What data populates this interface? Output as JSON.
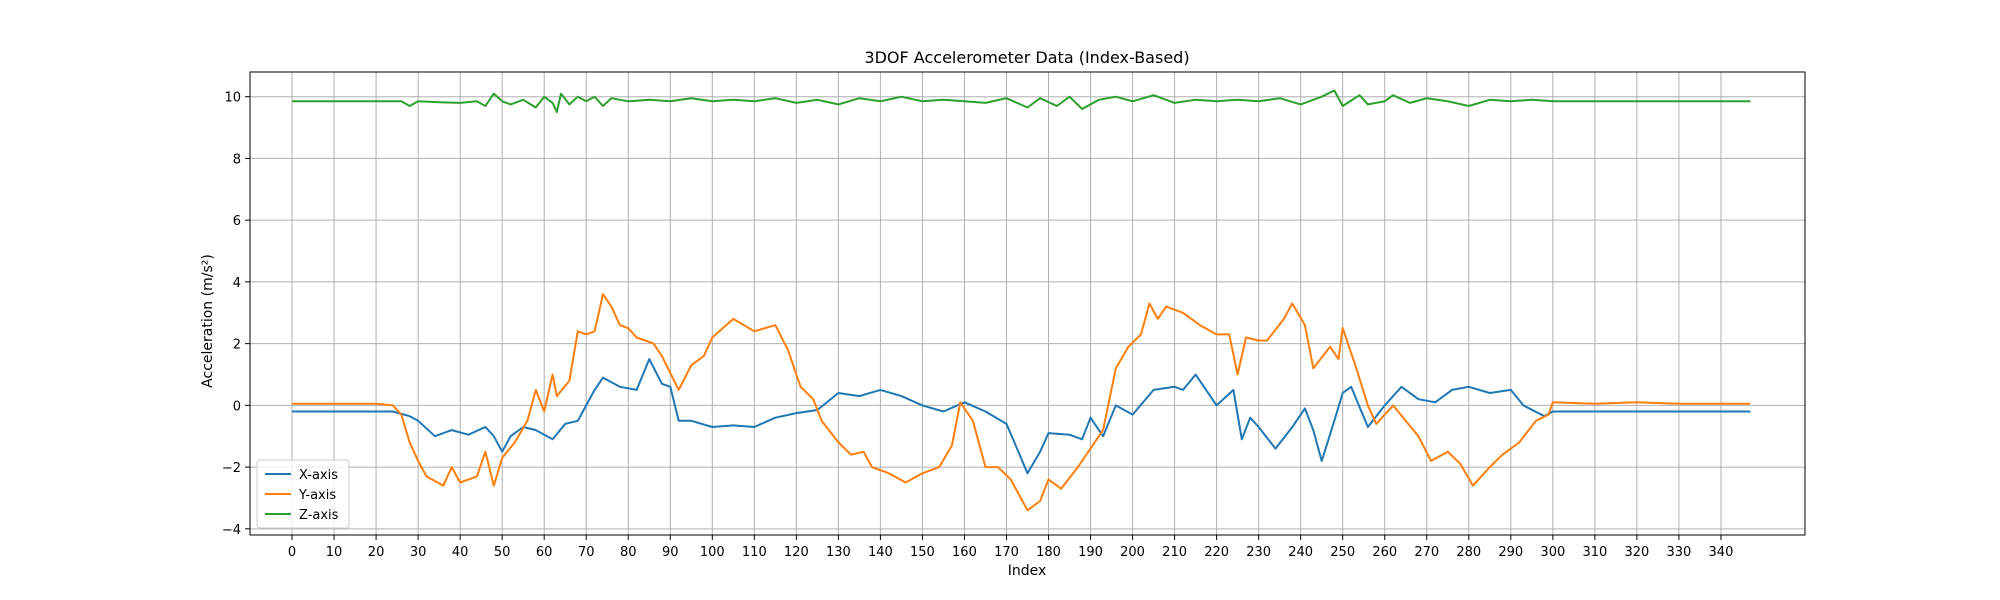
{
  "chart_data": {
    "type": "line",
    "title": "3DOF Accelerometer Data (Index-Based)",
    "xlabel": "Index",
    "ylabel": "Acceleration (m/s²)",
    "xlim": [
      -10,
      360
    ],
    "ylim": [
      -4.2,
      10.8
    ],
    "xticks": [
      0,
      10,
      20,
      30,
      40,
      50,
      60,
      70,
      80,
      90,
      100,
      110,
      120,
      130,
      140,
      150,
      160,
      170,
      180,
      190,
      200,
      210,
      220,
      230,
      240,
      250,
      260,
      270,
      280,
      290,
      300,
      310,
      320,
      330,
      340
    ],
    "yticks": [
      -4,
      -2,
      0,
      2,
      4,
      6,
      8,
      10
    ],
    "grid": true,
    "legend_position": "lower-left",
    "series": [
      {
        "name": "X-axis",
        "color": "#1f77b4",
        "points": [
          [
            0,
            -0.2
          ],
          [
            10,
            -0.2
          ],
          [
            20,
            -0.2
          ],
          [
            24,
            -0.2
          ],
          [
            28,
            -0.35
          ],
          [
            30,
            -0.5
          ],
          [
            34,
            -1.0
          ],
          [
            38,
            -0.8
          ],
          [
            42,
            -0.95
          ],
          [
            46,
            -0.7
          ],
          [
            48,
            -1.0
          ],
          [
            50,
            -1.5
          ],
          [
            52,
            -1.0
          ],
          [
            55,
            -0.7
          ],
          [
            58,
            -0.8
          ],
          [
            62,
            -1.1
          ],
          [
            65,
            -0.6
          ],
          [
            68,
            -0.5
          ],
          [
            70,
            0.0
          ],
          [
            72,
            0.5
          ],
          [
            74,
            0.9
          ],
          [
            78,
            0.6
          ],
          [
            82,
            0.5
          ],
          [
            85,
            1.5
          ],
          [
            88,
            0.7
          ],
          [
            90,
            0.6
          ],
          [
            92,
            -0.5
          ],
          [
            95,
            -0.5
          ],
          [
            100,
            -0.7
          ],
          [
            105,
            -0.65
          ],
          [
            110,
            -0.7
          ],
          [
            115,
            -0.4
          ],
          [
            120,
            -0.25
          ],
          [
            125,
            -0.15
          ],
          [
            130,
            0.4
          ],
          [
            135,
            0.3
          ],
          [
            140,
            0.5
          ],
          [
            145,
            0.3
          ],
          [
            150,
            0.0
          ],
          [
            155,
            -0.2
          ],
          [
            160,
            0.1
          ],
          [
            165,
            -0.2
          ],
          [
            170,
            -0.6
          ],
          [
            175,
            -2.2
          ],
          [
            178,
            -1.5
          ],
          [
            180,
            -0.9
          ],
          [
            185,
            -0.95
          ],
          [
            188,
            -1.1
          ],
          [
            190,
            -0.4
          ],
          [
            193,
            -1.0
          ],
          [
            196,
            0.0
          ],
          [
            200,
            -0.3
          ],
          [
            205,
            0.5
          ],
          [
            210,
            0.6
          ],
          [
            212,
            0.5
          ],
          [
            215,
            1.0
          ],
          [
            220,
            0.0
          ],
          [
            224,
            0.5
          ],
          [
            226,
            -1.1
          ],
          [
            228,
            -0.4
          ],
          [
            230,
            -0.7
          ],
          [
            234,
            -1.4
          ],
          [
            238,
            -0.7
          ],
          [
            241,
            -0.1
          ],
          [
            243,
            -0.8
          ],
          [
            245,
            -1.8
          ],
          [
            248,
            -0.5
          ],
          [
            250,
            0.4
          ],
          [
            252,
            0.6
          ],
          [
            256,
            -0.7
          ],
          [
            260,
            0.0
          ],
          [
            264,
            0.6
          ],
          [
            268,
            0.2
          ],
          [
            272,
            0.1
          ],
          [
            276,
            0.5
          ],
          [
            280,
            0.6
          ],
          [
            285,
            0.4
          ],
          [
            290,
            0.5
          ],
          [
            293,
            0.0
          ],
          [
            298,
            -0.35
          ],
          [
            300,
            -0.2
          ],
          [
            310,
            -0.2
          ],
          [
            320,
            -0.2
          ],
          [
            330,
            -0.2
          ],
          [
            340,
            -0.2
          ],
          [
            347,
            -0.2
          ]
        ]
      },
      {
        "name": "Y-axis",
        "color": "#ff7f0e",
        "points": [
          [
            0,
            0.05
          ],
          [
            10,
            0.05
          ],
          [
            20,
            0.05
          ],
          [
            24,
            0.0
          ],
          [
            26,
            -0.3
          ],
          [
            28,
            -1.2
          ],
          [
            30,
            -1.8
          ],
          [
            32,
            -2.3
          ],
          [
            36,
            -2.6
          ],
          [
            38,
            -2.0
          ],
          [
            40,
            -2.5
          ],
          [
            44,
            -2.3
          ],
          [
            46,
            -1.5
          ],
          [
            48,
            -2.6
          ],
          [
            50,
            -1.7
          ],
          [
            53,
            -1.2
          ],
          [
            56,
            -0.5
          ],
          [
            58,
            0.5
          ],
          [
            60,
            -0.2
          ],
          [
            62,
            1.0
          ],
          [
            63,
            0.3
          ],
          [
            66,
            0.8
          ],
          [
            68,
            2.4
          ],
          [
            70,
            2.3
          ],
          [
            72,
            2.4
          ],
          [
            74,
            3.6
          ],
          [
            76,
            3.2
          ],
          [
            78,
            2.6
          ],
          [
            80,
            2.5
          ],
          [
            82,
            2.2
          ],
          [
            84,
            2.1
          ],
          [
            86,
            2.0
          ],
          [
            88,
            1.6
          ],
          [
            92,
            0.5
          ],
          [
            95,
            1.3
          ],
          [
            98,
            1.6
          ],
          [
            100,
            2.2
          ],
          [
            105,
            2.8
          ],
          [
            110,
            2.4
          ],
          [
            115,
            2.6
          ],
          [
            118,
            1.8
          ],
          [
            121,
            0.6
          ],
          [
            124,
            0.2
          ],
          [
            126,
            -0.5
          ],
          [
            130,
            -1.2
          ],
          [
            133,
            -1.6
          ],
          [
            136,
            -1.5
          ],
          [
            138,
            -2.0
          ],
          [
            142,
            -2.2
          ],
          [
            146,
            -2.5
          ],
          [
            150,
            -2.2
          ],
          [
            154,
            -2.0
          ],
          [
            157,
            -1.3
          ],
          [
            159,
            0.1
          ],
          [
            162,
            -0.5
          ],
          [
            165,
            -2.0
          ],
          [
            168,
            -2.0
          ],
          [
            171,
            -2.4
          ],
          [
            175,
            -3.4
          ],
          [
            178,
            -3.1
          ],
          [
            180,
            -2.4
          ],
          [
            183,
            -2.7
          ],
          [
            187,
            -2.0
          ],
          [
            190,
            -1.4
          ],
          [
            193,
            -0.8
          ],
          [
            196,
            1.2
          ],
          [
            199,
            1.9
          ],
          [
            202,
            2.3
          ],
          [
            204,
            3.3
          ],
          [
            206,
            2.8
          ],
          [
            208,
            3.2
          ],
          [
            212,
            3.0
          ],
          [
            216,
            2.6
          ],
          [
            220,
            2.3
          ],
          [
            223,
            2.3
          ],
          [
            225,
            1.0
          ],
          [
            227,
            2.2
          ],
          [
            230,
            2.1
          ],
          [
            232,
            2.1
          ],
          [
            236,
            2.8
          ],
          [
            238,
            3.3
          ],
          [
            241,
            2.6
          ],
          [
            243,
            1.2
          ],
          [
            247,
            1.9
          ],
          [
            249,
            1.5
          ],
          [
            250,
            2.5
          ],
          [
            253,
            1.3
          ],
          [
            256,
            0.0
          ],
          [
            258,
            -0.6
          ],
          [
            262,
            0.0
          ],
          [
            265,
            -0.5
          ],
          [
            268,
            -1.0
          ],
          [
            271,
            -1.8
          ],
          [
            275,
            -1.5
          ],
          [
            278,
            -1.9
          ],
          [
            281,
            -2.6
          ],
          [
            285,
            -2.0
          ],
          [
            288,
            -1.6
          ],
          [
            292,
            -1.2
          ],
          [
            296,
            -0.5
          ],
          [
            299,
            -0.3
          ],
          [
            300,
            0.1
          ],
          [
            310,
            0.05
          ],
          [
            320,
            0.1
          ],
          [
            330,
            0.05
          ],
          [
            340,
            0.05
          ],
          [
            347,
            0.05
          ]
        ]
      },
      {
        "name": "Z-axis",
        "color": "#2ca02c",
        "points": [
          [
            0,
            9.85
          ],
          [
            10,
            9.85
          ],
          [
            20,
            9.85
          ],
          [
            26,
            9.85
          ],
          [
            28,
            9.7
          ],
          [
            30,
            9.85
          ],
          [
            35,
            9.82
          ],
          [
            40,
            9.8
          ],
          [
            44,
            9.85
          ],
          [
            46,
            9.7
          ],
          [
            48,
            10.1
          ],
          [
            50,
            9.85
          ],
          [
            52,
            9.75
          ],
          [
            55,
            9.9
          ],
          [
            58,
            9.65
          ],
          [
            60,
            10.0
          ],
          [
            62,
            9.8
          ],
          [
            63,
            9.5
          ],
          [
            64,
            10.1
          ],
          [
            66,
            9.75
          ],
          [
            68,
            10.0
          ],
          [
            70,
            9.85
          ],
          [
            72,
            10.0
          ],
          [
            74,
            9.7
          ],
          [
            76,
            9.95
          ],
          [
            80,
            9.85
          ],
          [
            85,
            9.9
          ],
          [
            90,
            9.85
          ],
          [
            95,
            9.95
          ],
          [
            100,
            9.85
          ],
          [
            105,
            9.9
          ],
          [
            110,
            9.85
          ],
          [
            115,
            9.95
          ],
          [
            120,
            9.8
          ],
          [
            125,
            9.9
          ],
          [
            130,
            9.75
          ],
          [
            135,
            9.95
          ],
          [
            140,
            9.85
          ],
          [
            145,
            10.0
          ],
          [
            150,
            9.85
          ],
          [
            155,
            9.9
          ],
          [
            160,
            9.85
          ],
          [
            165,
            9.8
          ],
          [
            170,
            9.95
          ],
          [
            175,
            9.65
          ],
          [
            178,
            9.95
          ],
          [
            182,
            9.7
          ],
          [
            185,
            10.0
          ],
          [
            188,
            9.6
          ],
          [
            192,
            9.9
          ],
          [
            196,
            10.0
          ],
          [
            200,
            9.85
          ],
          [
            205,
            10.05
          ],
          [
            210,
            9.8
          ],
          [
            215,
            9.9
          ],
          [
            220,
            9.85
          ],
          [
            225,
            9.9
          ],
          [
            230,
            9.85
          ],
          [
            235,
            9.95
          ],
          [
            240,
            9.75
          ],
          [
            245,
            10.0
          ],
          [
            248,
            10.2
          ],
          [
            250,
            9.7
          ],
          [
            254,
            10.05
          ],
          [
            256,
            9.75
          ],
          [
            260,
            9.85
          ],
          [
            262,
            10.05
          ],
          [
            266,
            9.8
          ],
          [
            270,
            9.95
          ],
          [
            275,
            9.85
          ],
          [
            280,
            9.7
          ],
          [
            285,
            9.9
          ],
          [
            290,
            9.85
          ],
          [
            295,
            9.9
          ],
          [
            300,
            9.85
          ],
          [
            310,
            9.85
          ],
          [
            320,
            9.85
          ],
          [
            330,
            9.85
          ],
          [
            340,
            9.85
          ],
          [
            347,
            9.85
          ]
        ]
      }
    ]
  }
}
